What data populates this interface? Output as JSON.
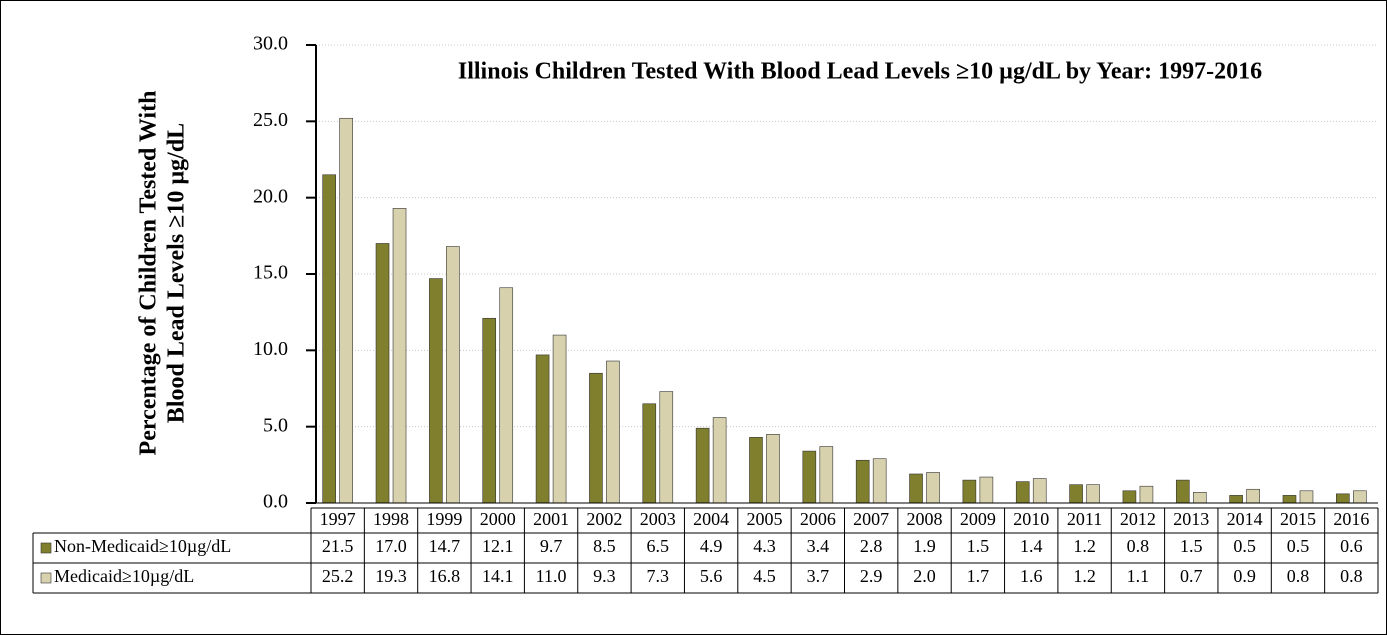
{
  "chart_data": {
    "type": "bar",
    "title": "Illinois Children Tested With Blood Lead Levels ≥10 µg/dL by Year: 1997-2016",
    "ylabel": [
      "Percentage  of Children Tested With",
      "Blood Lead Levels ≥10 µg/dL"
    ],
    "categories": [
      "1997",
      "1998",
      "1999",
      "2000",
      "2001",
      "2002",
      "2003",
      "2004",
      "2005",
      "2006",
      "2007",
      "2008",
      "2009",
      "2010",
      "2011",
      "2012",
      "2013",
      "2014",
      "2015",
      "2016"
    ],
    "series": [
      {
        "name": "Non-Medicaid≥10µg/dL",
        "color": "#7f7f2e",
        "values": [
          21.5,
          17.0,
          14.7,
          12.1,
          9.7,
          8.5,
          6.5,
          4.9,
          4.3,
          3.4,
          2.8,
          1.9,
          1.5,
          1.4,
          1.2,
          0.8,
          1.5,
          0.5,
          0.5,
          0.6
        ],
        "value_labels": [
          "21.5",
          "17.0",
          "14.7",
          "12.1",
          "9.7",
          "8.5",
          "6.5",
          "4.9",
          "4.3",
          "3.4",
          "2.8",
          "1.9",
          "1.5",
          "1.4",
          "1.2",
          "0.8",
          "1.5",
          "0.5",
          "0.5",
          "0.6"
        ]
      },
      {
        "name": "Medicaid≥10µg/dL",
        "color": "#d8d1ad",
        "values": [
          25.2,
          19.3,
          16.8,
          14.1,
          11.0,
          9.3,
          7.3,
          5.6,
          4.5,
          3.7,
          2.9,
          2.0,
          1.7,
          1.6,
          1.2,
          1.1,
          0.7,
          0.9,
          0.8,
          0.8
        ],
        "value_labels": [
          "25.2",
          "19.3",
          "16.8",
          "14.1",
          "11.0",
          "9.3",
          "7.3",
          "5.6",
          "4.5",
          "3.7",
          "2.9",
          "2.0",
          "1.7",
          "1.6",
          "1.2",
          "1.1",
          "0.7",
          "0.9",
          "0.8",
          "0.8"
        ]
      }
    ],
    "ylim": [
      0,
      30
    ],
    "yticks": [
      {
        "value": 0,
        "label": "0.0"
      },
      {
        "value": 5,
        "label": "5.0"
      },
      {
        "value": 10,
        "label": "10.0"
      },
      {
        "value": 15,
        "label": "15.0"
      },
      {
        "value": 20,
        "label": "20.0"
      },
      {
        "value": 25,
        "label": "25.0"
      },
      {
        "value": 30,
        "label": "30.0"
      }
    ],
    "grid": true
  }
}
